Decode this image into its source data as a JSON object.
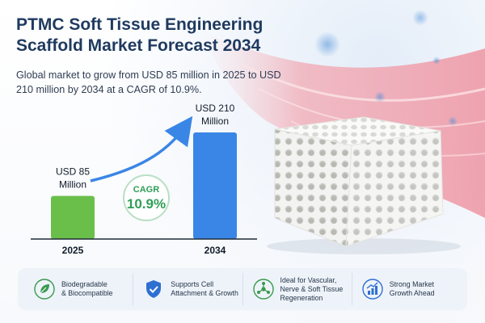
{
  "title": "PTMC Soft Tissue Engineering Scaffold Market Forecast 2034",
  "subtitle": "Global market to grow from USD 85 million in 2025 to USD 210 million by 2034 at a CAGR of 10.9%.",
  "chart_data": {
    "type": "bar",
    "categories": [
      "2025",
      "2034"
    ],
    "values": [
      85,
      210
    ],
    "data_labels": [
      [
        "USD 85",
        "Million"
      ],
      [
        "USD 210",
        "Million"
      ]
    ],
    "ylim": [
      0,
      210
    ],
    "grid": false,
    "colors": [
      "#6abf4b",
      "#3a86e6"
    ],
    "annotation": {
      "label": "CAGR",
      "value": "10.9%",
      "color": "#2e9e57"
    }
  },
  "features": [
    {
      "icon": "leaf-icon",
      "lines": [
        "Biodegradable",
        "& Biocompatible"
      ],
      "color": "#3a9a4f"
    },
    {
      "icon": "shield-check-icon",
      "lines": [
        "Supports Cell",
        "Attachment & Growth"
      ],
      "color": "#2f6fd1"
    },
    {
      "icon": "molecule-icon",
      "lines": [
        "Ideal for Vascular,",
        "Nerve & Soft Tissue",
        "Regeneration"
      ],
      "color": "#3a9a4f"
    },
    {
      "icon": "bar-chart-growth-icon",
      "lines": [
        "Strong Market",
        "Growth Ahead"
      ],
      "color": "#2f6fd1"
    }
  ]
}
